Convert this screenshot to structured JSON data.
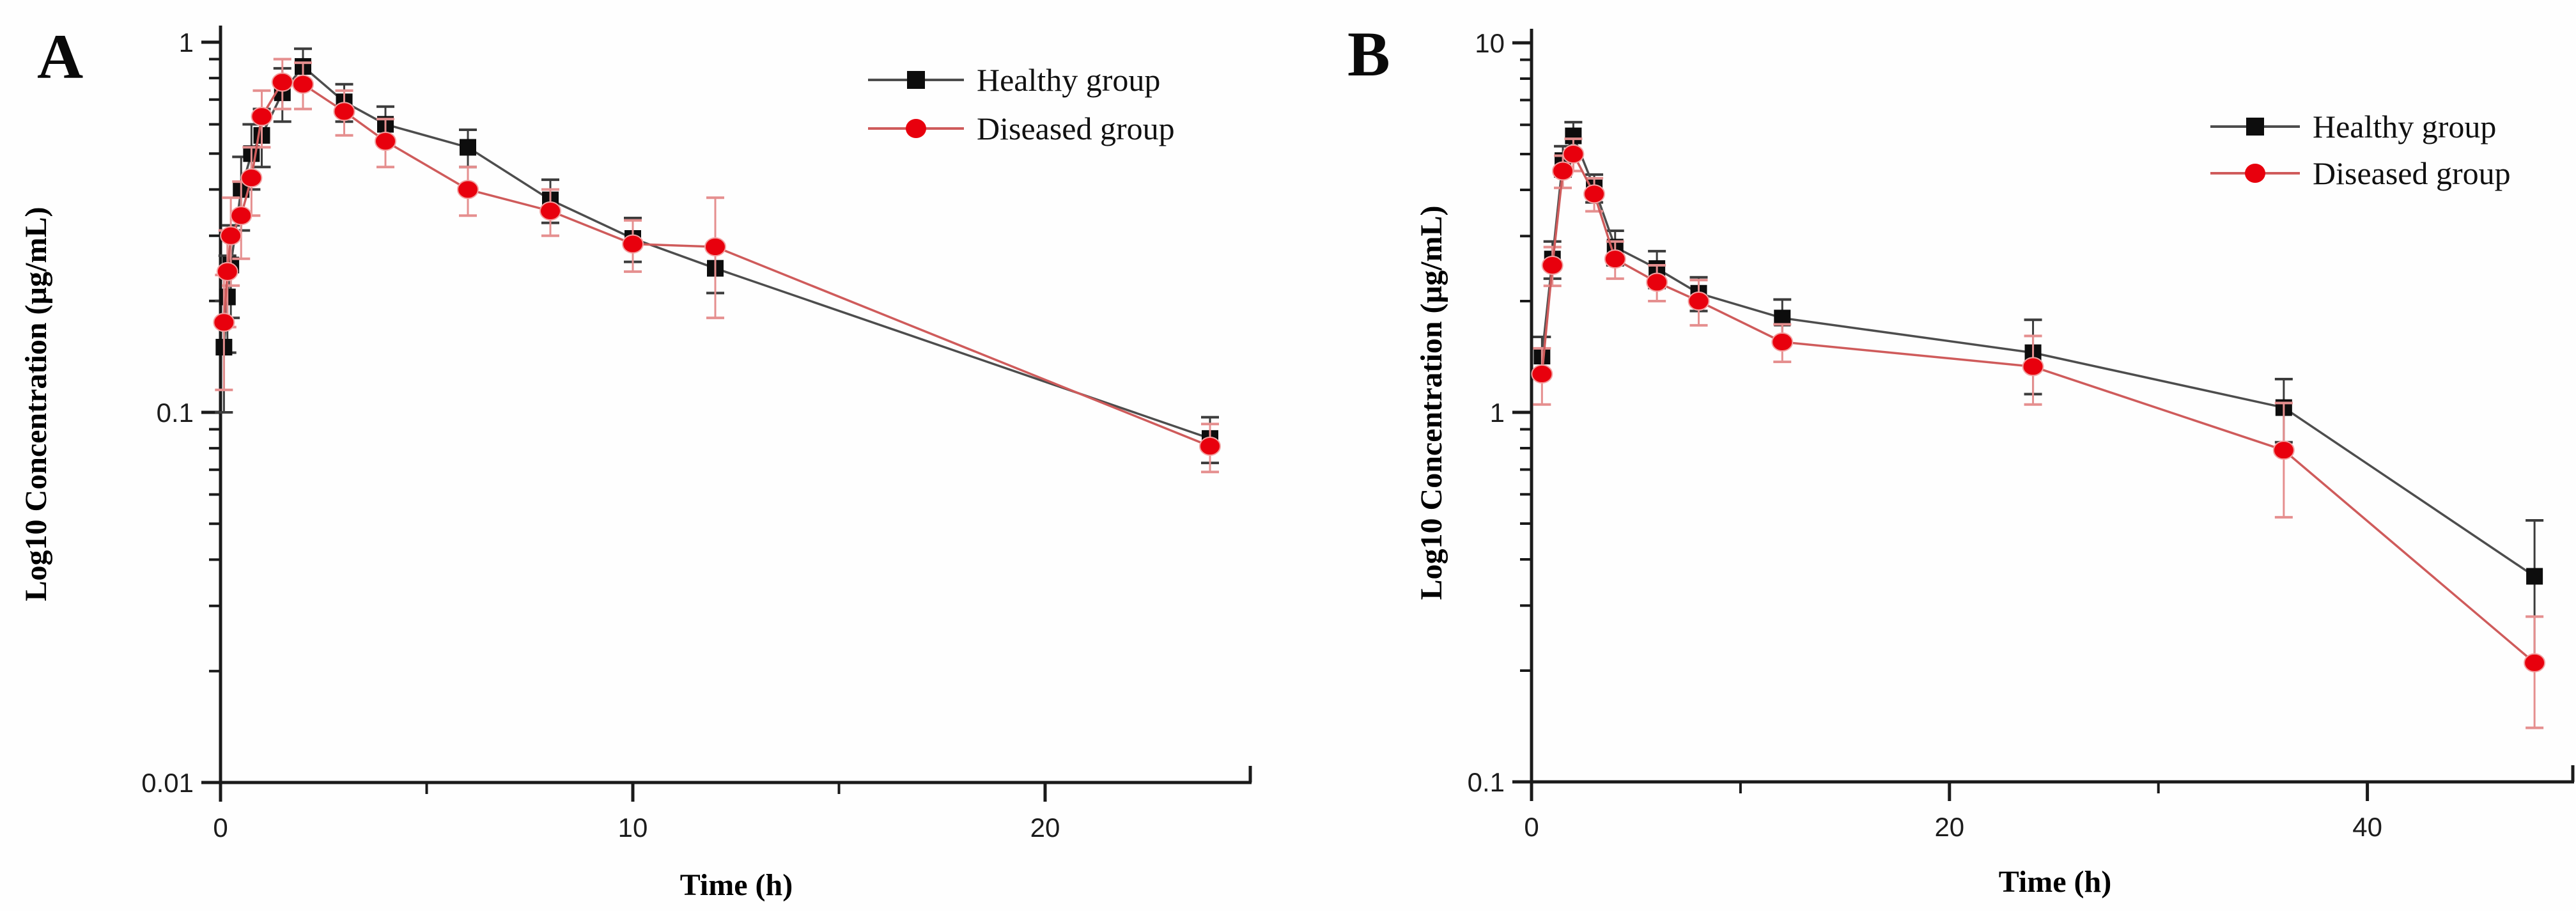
{
  "figure": {
    "background": "#fefefe",
    "panels": [
      "A",
      "B"
    ]
  },
  "colors": {
    "healthy_marker": "#0d0d0d",
    "healthy_line": "#4d4d4d",
    "healthy_error": "#3c3c3c",
    "diseased_marker": "#e8000d",
    "diseased_line": "#cf5b5b",
    "diseased_error": "#e58f8f",
    "axis": "#1a1a1a"
  },
  "chart_data": [
    {
      "type": "line",
      "panel_letter": "A",
      "title": "",
      "xlabel": "Time (h)",
      "ylabel": "Log10 Concentration (µg/mL)",
      "y_scale": "log10",
      "xlim": [
        0,
        25
      ],
      "ylim": [
        0.01,
        1.1
      ],
      "x_major_ticks": [
        0,
        10,
        20
      ],
      "x_major_tick_labels": [
        "0",
        "10",
        "20"
      ],
      "x_minor_ticks": [
        5,
        15
      ],
      "y_major_ticks": [
        1,
        0.1,
        0.01
      ],
      "y_major_tick_labels": [
        "1",
        "0.1",
        "0.01"
      ],
      "grid": "off",
      "legend_position": "top-right-inside",
      "x": [
        0.083,
        0.167,
        0.25,
        0.5,
        0.75,
        1,
        1.5,
        2,
        3,
        4,
        6,
        8,
        10,
        12,
        24
      ],
      "series": [
        {
          "name": "Healthy group",
          "marker": "square",
          "values": [
            0.15,
            0.205,
            0.25,
            0.4,
            0.5,
            0.56,
            0.73,
            0.86,
            0.69,
            0.6,
            0.52,
            0.375,
            0.295,
            0.245,
            0.085
          ],
          "err": [
            0.05,
            0.06,
            0.07,
            0.09,
            0.1,
            0.1,
            0.12,
            0.1,
            0.08,
            0.07,
            0.06,
            0.05,
            0.04,
            0.035,
            0.012
          ]
        },
        {
          "name": "Diseased group",
          "marker": "circle",
          "values": [
            0.175,
            0.24,
            0.3,
            0.34,
            0.43,
            0.63,
            0.78,
            0.77,
            0.65,
            0.54,
            0.4,
            0.35,
            0.285,
            0.28,
            0.081
          ],
          "err": [
            0.06,
            0.07,
            0.08,
            0.08,
            0.09,
            0.11,
            0.12,
            0.11,
            0.09,
            0.08,
            0.06,
            0.05,
            0.045,
            0.1,
            0.012
          ]
        }
      ]
    },
    {
      "type": "line",
      "panel_letter": "B",
      "title": "",
      "xlabel": "Time (h)",
      "ylabel": "Log10 Concentration (µg/mL)",
      "y_scale": "log10",
      "xlim": [
        0,
        49.9
      ],
      "ylim": [
        0.1,
        10.5
      ],
      "x_major_ticks": [
        0,
        20,
        40
      ],
      "x_major_tick_labels": [
        "0",
        "20",
        "40"
      ],
      "x_minor_ticks": [
        10,
        30
      ],
      "y_major_ticks": [
        10,
        1,
        0.1
      ],
      "y_major_tick_labels": [
        "10",
        "1",
        "0.1"
      ],
      "grid": "off",
      "legend_position": "top-right-inside",
      "x": [
        0.5,
        1,
        1.5,
        2,
        3,
        4,
        6,
        8,
        12,
        24,
        36,
        48
      ],
      "series": [
        {
          "name": "Healthy group",
          "marker": "square",
          "values": [
            1.42,
            2.6,
            4.8,
            5.6,
            4.05,
            2.8,
            2.45,
            2.1,
            1.8,
            1.45,
            1.03,
            0.36
          ],
          "err": [
            0.18,
            0.3,
            0.45,
            0.5,
            0.35,
            0.3,
            0.28,
            0.22,
            0.22,
            0.33,
            0.2,
            0.15
          ]
        },
        {
          "name": "Diseased group",
          "marker": "circle",
          "values": [
            1.27,
            2.5,
            4.5,
            5.0,
            3.9,
            2.6,
            2.25,
            2.0,
            1.55,
            1.33,
            0.79,
            0.21
          ],
          "err": [
            0.22,
            0.3,
            0.45,
            0.5,
            0.4,
            0.3,
            0.25,
            0.28,
            0.18,
            0.28,
            0.27,
            0.07
          ]
        }
      ]
    }
  ]
}
